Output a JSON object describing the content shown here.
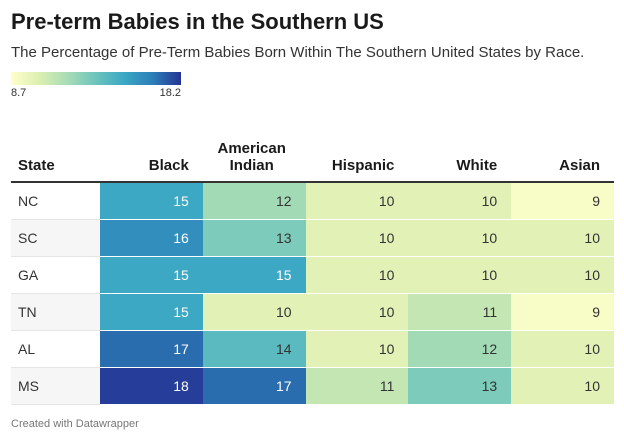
{
  "title": "Pre-term Babies in the Southern US",
  "subtitle": "The Percentage of Pre-Term Babies Born Within The Southern United States by Race.",
  "legend": {
    "min_label": "8.7",
    "max_label": "18.2"
  },
  "footer": "Created with Datawrapper",
  "colors": {
    "scale": [
      "#ffffcc",
      "#dcefb2",
      "#a8dcb5",
      "#6cc4bc",
      "#3ba7c4",
      "#2c7fb8",
      "#253494"
    ],
    "text_dark": "#333333",
    "text_light": "#ffffff"
  },
  "chart_data": {
    "type": "table",
    "title": "Pre-term Babies in the Southern US",
    "subtitle": "The Percentage of Pre-Term Babies Born Within The Southern United States by Race.",
    "value_range": [
      8.7,
      18.2
    ],
    "row_header": "State",
    "columns": [
      "Black",
      "American Indian",
      "Hispanic",
      "White",
      "Asian"
    ],
    "rows": [
      {
        "state": "NC",
        "values": [
          15,
          12,
          10,
          10,
          9
        ]
      },
      {
        "state": "SC",
        "values": [
          16,
          13,
          10,
          10,
          10
        ]
      },
      {
        "state": "GA",
        "values": [
          15,
          15,
          10,
          10,
          10
        ]
      },
      {
        "state": "TN",
        "values": [
          15,
          10,
          10,
          11,
          9
        ]
      },
      {
        "state": "AL",
        "values": [
          17,
          14,
          10,
          12,
          10
        ]
      },
      {
        "state": "MS",
        "values": [
          18,
          17,
          11,
          13,
          10
        ]
      }
    ]
  }
}
